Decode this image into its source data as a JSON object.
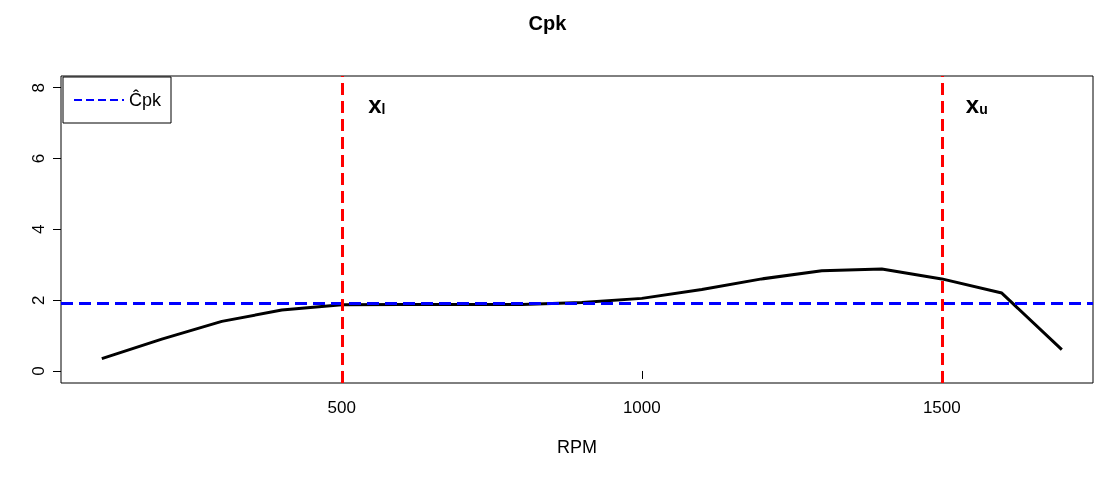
{
  "chart_data": {
    "type": "line",
    "title": "Cpk",
    "xlabel": "RPM",
    "x": [
      100,
      200,
      300,
      400,
      500,
      600,
      700,
      800,
      900,
      1000,
      1100,
      1200,
      1300,
      1400,
      1500,
      1600,
      1700
    ],
    "series": [
      {
        "color": "#000000",
        "values": [
          0.35,
          0.9,
          1.4,
          1.72,
          1.87,
          1.88,
          1.88,
          1.88,
          1.93,
          2.05,
          2.3,
          2.6,
          2.83,
          2.88,
          2.6,
          2.2,
          0.6
        ]
      }
    ],
    "xlim": [
      32,
      1752
    ],
    "ylim": [
      -0.34,
      8.33
    ],
    "xticks": [
      500,
      1000,
      1500
    ],
    "yticks": [
      0,
      2,
      4,
      6,
      8
    ],
    "ref_lines": [
      {
        "axis": "y",
        "value": 1.9,
        "label": "Ĉpk",
        "color": "#0000ff",
        "line_style": "dashed"
      },
      {
        "axis": "x",
        "value": 500,
        "label": "x$_{l}$",
        "color": "#ff0000",
        "line_style": "dashed"
      },
      {
        "axis": "x",
        "value": 1500,
        "label": "x$_{u}$",
        "color": "#ff0000",
        "line_style": "dashed"
      }
    ],
    "legend": "top left",
    "grid": false,
    "marker": "none",
    "line_style": "solid"
  }
}
